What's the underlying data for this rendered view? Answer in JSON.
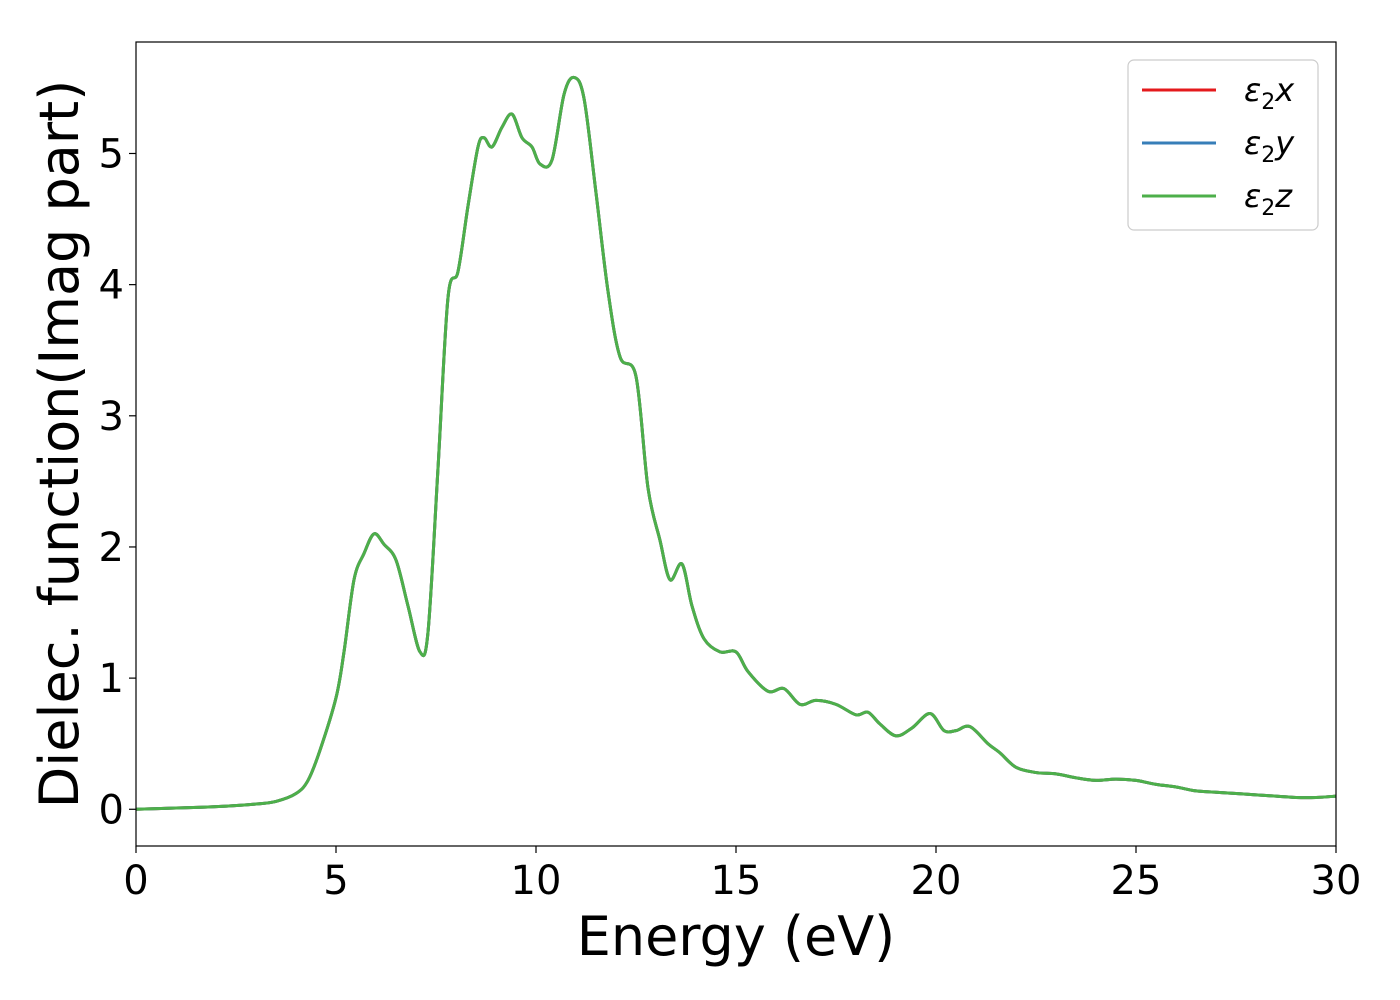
{
  "chart_data": {
    "type": "line",
    "xlabel": "Energy (eV)",
    "ylabel": "Dielec. function(Imag part)",
    "xlim": [
      0,
      30
    ],
    "ylim": [
      -0.28,
      5.85
    ],
    "xticks": [
      "0",
      "5",
      "10",
      "15",
      "20",
      "25",
      "30"
    ],
    "yticks": [
      "0",
      "1",
      "2",
      "3",
      "4",
      "5"
    ],
    "grid": false,
    "legend_position": "top-right",
    "x": [
      0,
      1,
      2,
      3,
      3.5,
      4,
      4.3,
      4.6,
      5,
      5.2,
      5.45,
      5.7,
      5.95,
      6.2,
      6.5,
      6.8,
      7.1,
      7.3,
      7.55,
      7.8,
      8.05,
      8.3,
      8.55,
      8.7,
      8.9,
      9.15,
      9.4,
      9.65,
      9.9,
      10.1,
      10.4,
      10.7,
      10.95,
      11.2,
      11.5,
      11.8,
      12.1,
      12.5,
      12.8,
      13.1,
      13.35,
      13.65,
      13.9,
      14.2,
      14.6,
      15,
      15.3,
      15.8,
      16.2,
      16.6,
      17,
      17.5,
      18,
      18.3,
      18.6,
      19,
      19.4,
      19.85,
      20.2,
      20.5,
      20.85,
      21.3,
      21.6,
      22,
      22.5,
      23,
      23.5,
      24,
      24.5,
      25,
      25.5,
      26,
      26.5,
      27,
      27.5,
      28,
      28.5,
      29,
      29.5,
      30
    ],
    "series": [
      {
        "name": "ε₂x",
        "color": "#e41a1c",
        "values": [
          0.0,
          0.01,
          0.02,
          0.04,
          0.06,
          0.12,
          0.22,
          0.45,
          0.85,
          1.2,
          1.75,
          1.95,
          2.1,
          2.02,
          1.9,
          1.55,
          1.2,
          1.35,
          2.6,
          3.9,
          4.1,
          4.6,
          5.05,
          5.12,
          5.05,
          5.2,
          5.3,
          5.12,
          5.05,
          4.92,
          4.95,
          5.45,
          5.58,
          5.42,
          4.7,
          3.95,
          3.45,
          3.3,
          2.45,
          2.05,
          1.75,
          1.87,
          1.55,
          1.3,
          1.2,
          1.2,
          1.05,
          0.9,
          0.92,
          0.8,
          0.83,
          0.8,
          0.72,
          0.74,
          0.65,
          0.56,
          0.62,
          0.73,
          0.6,
          0.6,
          0.63,
          0.5,
          0.43,
          0.32,
          0.28,
          0.27,
          0.24,
          0.22,
          0.23,
          0.22,
          0.19,
          0.17,
          0.14,
          0.13,
          0.12,
          0.11,
          0.1,
          0.09,
          0.09,
          0.1
        ]
      },
      {
        "name": "ε₂y",
        "color": "#377eb8",
        "values": [
          0.0,
          0.01,
          0.02,
          0.04,
          0.06,
          0.12,
          0.22,
          0.45,
          0.85,
          1.2,
          1.75,
          1.95,
          2.1,
          2.02,
          1.9,
          1.55,
          1.2,
          1.35,
          2.6,
          3.9,
          4.1,
          4.6,
          5.05,
          5.12,
          5.05,
          5.2,
          5.3,
          5.12,
          5.05,
          4.92,
          4.95,
          5.45,
          5.58,
          5.42,
          4.7,
          3.95,
          3.45,
          3.3,
          2.45,
          2.05,
          1.75,
          1.87,
          1.55,
          1.3,
          1.2,
          1.2,
          1.05,
          0.9,
          0.92,
          0.8,
          0.83,
          0.8,
          0.72,
          0.74,
          0.65,
          0.56,
          0.62,
          0.73,
          0.6,
          0.6,
          0.63,
          0.5,
          0.43,
          0.32,
          0.28,
          0.27,
          0.24,
          0.22,
          0.23,
          0.22,
          0.19,
          0.17,
          0.14,
          0.13,
          0.12,
          0.11,
          0.1,
          0.09,
          0.09,
          0.1
        ]
      },
      {
        "name": "ε₂z",
        "color": "#4daf4a",
        "values": [
          0.0,
          0.01,
          0.02,
          0.04,
          0.06,
          0.12,
          0.22,
          0.45,
          0.85,
          1.2,
          1.75,
          1.95,
          2.1,
          2.02,
          1.9,
          1.55,
          1.2,
          1.35,
          2.6,
          3.9,
          4.1,
          4.6,
          5.05,
          5.12,
          5.05,
          5.2,
          5.3,
          5.12,
          5.05,
          4.92,
          4.95,
          5.45,
          5.58,
          5.42,
          4.7,
          3.95,
          3.45,
          3.3,
          2.45,
          2.05,
          1.75,
          1.87,
          1.55,
          1.3,
          1.2,
          1.2,
          1.05,
          0.9,
          0.92,
          0.8,
          0.83,
          0.8,
          0.72,
          0.74,
          0.65,
          0.56,
          0.62,
          0.73,
          0.6,
          0.6,
          0.63,
          0.5,
          0.43,
          0.32,
          0.28,
          0.27,
          0.24,
          0.22,
          0.23,
          0.22,
          0.19,
          0.17,
          0.14,
          0.13,
          0.12,
          0.11,
          0.1,
          0.09,
          0.09,
          0.1
        ]
      }
    ],
    "legend": {
      "entries": [
        {
          "symbol": "ε",
          "sub": "2",
          "axis": "x"
        },
        {
          "symbol": "ε",
          "sub": "2",
          "axis": "y"
        },
        {
          "symbol": "ε",
          "sub": "2",
          "axis": "z"
        }
      ]
    }
  }
}
